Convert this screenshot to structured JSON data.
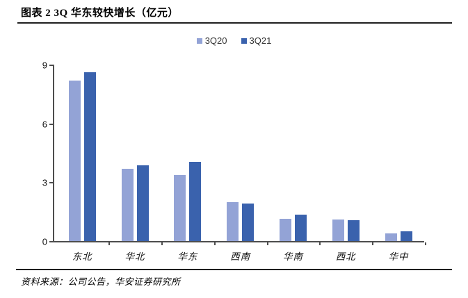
{
  "header": {
    "title": "图表 2 3Q 华东较快增长（亿元）"
  },
  "footer": {
    "source": "资料来源：公司公告，华安证券研究所"
  },
  "chart_data": {
    "type": "bar",
    "title": "图表 2 3Q 华东较快增长（亿元）",
    "categories": [
      "东北",
      "华北",
      "华东",
      "西南",
      "华南",
      "西北",
      "华中"
    ],
    "series": [
      {
        "name": "3Q20",
        "color": "#93A3D6",
        "values": [
          8.2,
          3.7,
          3.35,
          2.0,
          1.15,
          1.1,
          0.4
        ]
      },
      {
        "name": "3Q21",
        "color": "#3A62AD",
        "values": [
          8.6,
          3.85,
          4.05,
          1.9,
          1.35,
          1.05,
          0.5
        ]
      }
    ],
    "xlabel": "",
    "ylabel": "",
    "yticks": [
      0,
      3,
      6,
      9
    ],
    "ylim": [
      0,
      9
    ],
    "grid": false,
    "legend_position": "top-center",
    "axis_color": "#4d4d4d",
    "unit": "亿元"
  }
}
